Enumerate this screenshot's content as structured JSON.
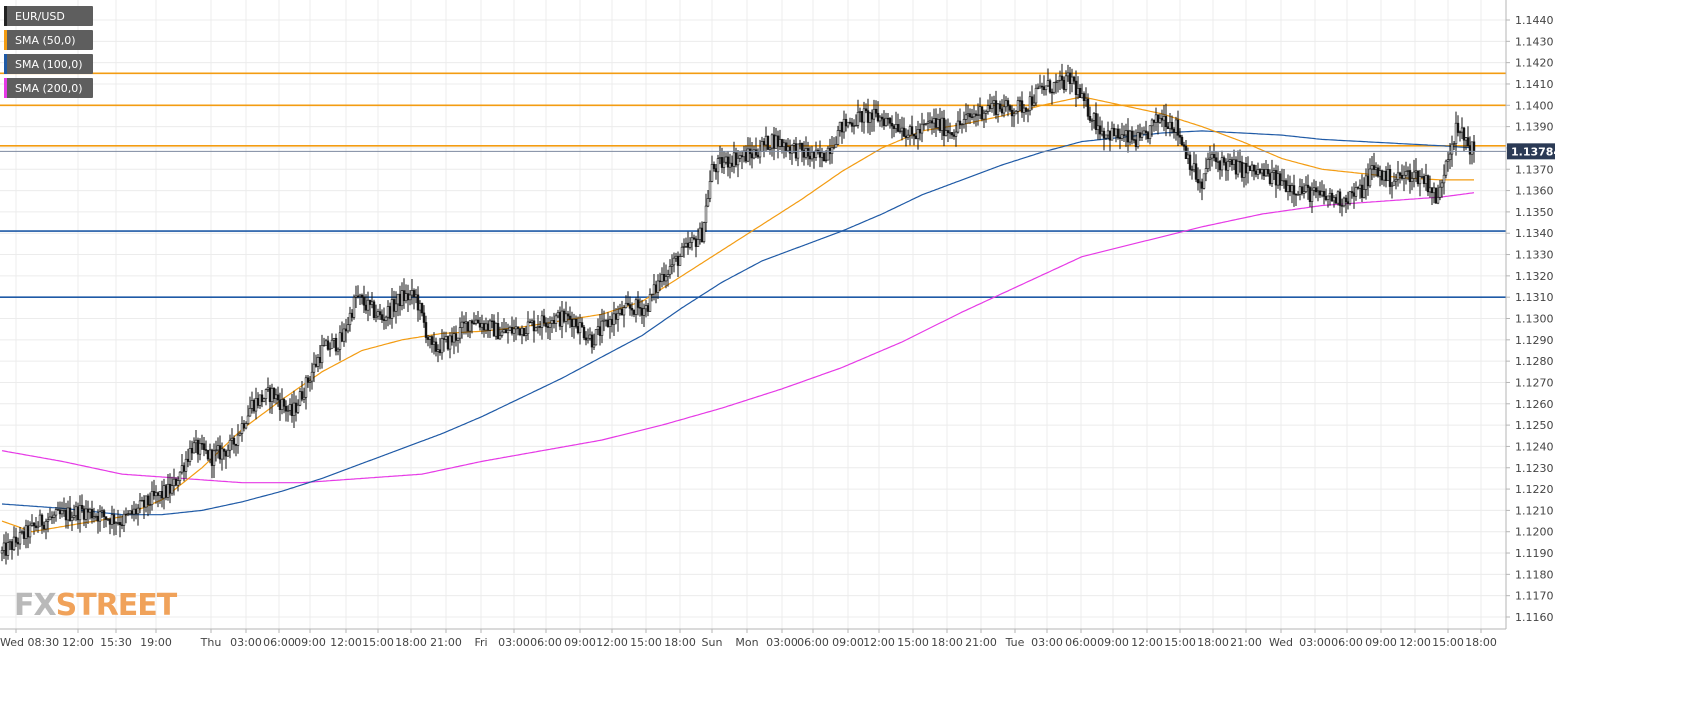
{
  "logo": {
    "part1": "FX",
    "part2": "STREET"
  },
  "legend": [
    {
      "label": "EUR/USD",
      "color": "#222222"
    },
    {
      "label": "SMA (50,0)",
      "color": "#f39c12"
    },
    {
      "label": "SMA (100,0)",
      "color": "#1f5aa6"
    },
    {
      "label": "SMA (200,0)",
      "color": "#e63ae6"
    }
  ],
  "chart_data": {
    "type": "candlestick",
    "symbol": "EUR/USD",
    "ylim": [
      1.115,
      1.145
    ],
    "y_ticks": [
      "1.1160",
      "1.1170",
      "1.1180",
      "1.1190",
      "1.1200",
      "1.1210",
      "1.1220",
      "1.1230",
      "1.1240",
      "1.1250",
      "1.1260",
      "1.1270",
      "1.1280",
      "1.1290",
      "1.1300",
      "1.1310",
      "1.1320",
      "1.1330",
      "1.1340",
      "1.1350",
      "1.1360",
      "1.1370",
      "1.1380",
      "1.1390",
      "1.1400",
      "1.1410",
      "1.1420",
      "1.1430",
      "1.1440"
    ],
    "x_ticks": [
      "Wed 08:30",
      "12:00",
      "15:30",
      "19:00",
      "Thu",
      "03:00",
      "06:00",
      "09:00",
      "12:00",
      "15:00",
      "18:00",
      "21:00",
      "Fri",
      "03:00",
      "06:00",
      "09:00",
      "12:00",
      "15:00",
      "18:00",
      "Sun",
      "Mon",
      "03:00",
      "06:00",
      "09:00",
      "12:00",
      "15:00",
      "18:00",
      "21:00",
      "Tue",
      "03:00",
      "06:00",
      "09:00",
      "12:00",
      "15:00",
      "18:00",
      "21:00",
      "Wed",
      "03:00",
      "06:00",
      "09:00",
      "12:00",
      "15:00",
      "18:00"
    ],
    "last_price": "1.13784",
    "last_price_color": "#2b3a55",
    "grid": true,
    "legend_position": "top-left",
    "resistance_levels": [
      1.1415,
      1.14,
      1.1381
    ],
    "support_levels": [
      1.1341,
      1.131
    ],
    "resistance_color": "#f39c12",
    "support_color": "#1f5aa6",
    "close_path": [
      [
        0,
        1.119
      ],
      [
        20,
        1.1205
      ],
      [
        40,
        1.121
      ],
      [
        60,
        1.1205
      ],
      [
        75,
        1.1215
      ],
      [
        85,
        1.122
      ],
      [
        95,
        1.124
      ],
      [
        105,
        1.1235
      ],
      [
        115,
        1.124
      ],
      [
        125,
        1.126
      ],
      [
        135,
        1.1265
      ],
      [
        145,
        1.1255
      ],
      [
        155,
        1.1275
      ],
      [
        160,
        1.1285
      ],
      [
        170,
        1.129
      ],
      [
        177,
        1.131
      ],
      [
        190,
        1.13
      ],
      [
        200,
        1.131
      ],
      [
        207,
        1.131
      ],
      [
        215,
        1.1285
      ],
      [
        225,
        1.129
      ],
      [
        235,
        1.13
      ],
      [
        250,
        1.1293
      ],
      [
        265,
        1.1297
      ],
      [
        275,
        1.13
      ],
      [
        285,
        1.13
      ],
      [
        295,
        1.129
      ],
      [
        305,
        1.13
      ],
      [
        315,
        1.1305
      ],
      [
        322,
        1.1305
      ],
      [
        330,
        1.132
      ],
      [
        340,
        1.133
      ],
      [
        350,
        1.134
      ],
      [
        355,
        1.137
      ],
      [
        365,
        1.1375
      ],
      [
        375,
        1.1377
      ],
      [
        385,
        1.1384
      ],
      [
        395,
        1.138
      ],
      [
        405,
        1.1376
      ],
      [
        410,
        1.1375
      ],
      [
        420,
        1.139
      ],
      [
        430,
        1.1395
      ],
      [
        440,
        1.1394
      ],
      [
        450,
        1.139
      ],
      [
        455,
        1.1385
      ],
      [
        465,
        1.1392
      ],
      [
        475,
        1.1388
      ],
      [
        485,
        1.1395
      ],
      [
        495,
        1.14
      ],
      [
        505,
        1.1398
      ],
      [
        512,
        1.14
      ],
      [
        520,
        1.1408
      ],
      [
        530,
        1.141
      ],
      [
        535,
        1.1412
      ],
      [
        540,
        1.1402
      ],
      [
        545,
        1.1395
      ],
      [
        550,
        1.1388
      ],
      [
        560,
        1.1385
      ],
      [
        570,
        1.1383
      ],
      [
        575,
        1.139
      ],
      [
        580,
        1.1395
      ],
      [
        587,
        1.139
      ],
      [
        593,
        1.1376
      ],
      [
        600,
        1.136
      ],
      [
        603,
        1.1375
      ],
      [
        610,
        1.1373
      ],
      [
        620,
        1.137
      ],
      [
        630,
        1.1368
      ],
      [
        640,
        1.1364
      ],
      [
        650,
        1.136
      ],
      [
        660,
        1.1357
      ],
      [
        670,
        1.1356
      ],
      [
        680,
        1.136
      ],
      [
        685,
        1.137
      ],
      [
        695,
        1.1365
      ],
      [
        705,
        1.1368
      ],
      [
        712,
        1.1365
      ],
      [
        718,
        1.1355
      ],
      [
        722,
        1.1375
      ],
      [
        727,
        1.1388
      ],
      [
        731,
        1.1385
      ],
      [
        736,
        1.1378
      ]
    ],
    "sma_50": [
      [
        0,
        1.1205
      ],
      [
        15,
        1.12
      ],
      [
        40,
        1.1204
      ],
      [
        60,
        1.1207
      ],
      [
        80,
        1.1215
      ],
      [
        100,
        1.123
      ],
      [
        120,
        1.1248
      ],
      [
        140,
        1.1262
      ],
      [
        160,
        1.1275
      ],
      [
        180,
        1.1285
      ],
      [
        200,
        1.129
      ],
      [
        220,
        1.1293
      ],
      [
        240,
        1.1294
      ],
      [
        260,
        1.1296
      ],
      [
        280,
        1.1299
      ],
      [
        300,
        1.1302
      ],
      [
        320,
        1.1308
      ],
      [
        340,
        1.132
      ],
      [
        360,
        1.1332
      ],
      [
        380,
        1.1344
      ],
      [
        400,
        1.1356
      ],
      [
        420,
        1.1369
      ],
      [
        440,
        1.138
      ],
      [
        460,
        1.1388
      ],
      [
        480,
        1.1391
      ],
      [
        500,
        1.1395
      ],
      [
        520,
        1.14
      ],
      [
        540,
        1.1404
      ],
      [
        560,
        1.14
      ],
      [
        580,
        1.1396
      ],
      [
        600,
        1.139
      ],
      [
        620,
        1.1383
      ],
      [
        640,
        1.1375
      ],
      [
        660,
        1.137
      ],
      [
        680,
        1.1368
      ],
      [
        700,
        1.1366
      ],
      [
        720,
        1.1365
      ],
      [
        736,
        1.1365
      ]
    ],
    "sma_100": [
      [
        0,
        1.1213
      ],
      [
        30,
        1.1211
      ],
      [
        60,
        1.1208
      ],
      [
        80,
        1.1208
      ],
      [
        100,
        1.121
      ],
      [
        120,
        1.1214
      ],
      [
        140,
        1.1219
      ],
      [
        160,
        1.1225
      ],
      [
        180,
        1.1232
      ],
      [
        200,
        1.1239
      ],
      [
        220,
        1.1246
      ],
      [
        240,
        1.1254
      ],
      [
        260,
        1.1263
      ],
      [
        280,
        1.1272
      ],
      [
        300,
        1.1282
      ],
      [
        320,
        1.1292
      ],
      [
        340,
        1.1305
      ],
      [
        360,
        1.1317
      ],
      [
        380,
        1.1327
      ],
      [
        400,
        1.1334
      ],
      [
        420,
        1.1341
      ],
      [
        440,
        1.1349
      ],
      [
        460,
        1.1358
      ],
      [
        480,
        1.1365
      ],
      [
        500,
        1.1372
      ],
      [
        520,
        1.1378
      ],
      [
        540,
        1.1383
      ],
      [
        560,
        1.1385
      ],
      [
        580,
        1.1387
      ],
      [
        600,
        1.1388
      ],
      [
        620,
        1.1387
      ],
      [
        640,
        1.1386
      ],
      [
        660,
        1.1384
      ],
      [
        680,
        1.1383
      ],
      [
        700,
        1.1382
      ],
      [
        720,
        1.1381
      ],
      [
        736,
        1.138
      ]
    ],
    "sma_200": [
      [
        0,
        1.1238
      ],
      [
        30,
        1.1233
      ],
      [
        60,
        1.1227
      ],
      [
        90,
        1.1225
      ],
      [
        120,
        1.1223
      ],
      [
        150,
        1.1223
      ],
      [
        180,
        1.1225
      ],
      [
        210,
        1.1227
      ],
      [
        240,
        1.1233
      ],
      [
        270,
        1.1238
      ],
      [
        300,
        1.1243
      ],
      [
        330,
        1.125
      ],
      [
        360,
        1.1258
      ],
      [
        390,
        1.1267
      ],
      [
        420,
        1.1277
      ],
      [
        450,
        1.1289
      ],
      [
        480,
        1.1303
      ],
      [
        510,
        1.1316
      ],
      [
        540,
        1.1329
      ],
      [
        570,
        1.1336
      ],
      [
        600,
        1.1343
      ],
      [
        630,
        1.1349
      ],
      [
        660,
        1.1353
      ],
      [
        690,
        1.1355
      ],
      [
        720,
        1.1357
      ],
      [
        736,
        1.1359
      ]
    ]
  }
}
